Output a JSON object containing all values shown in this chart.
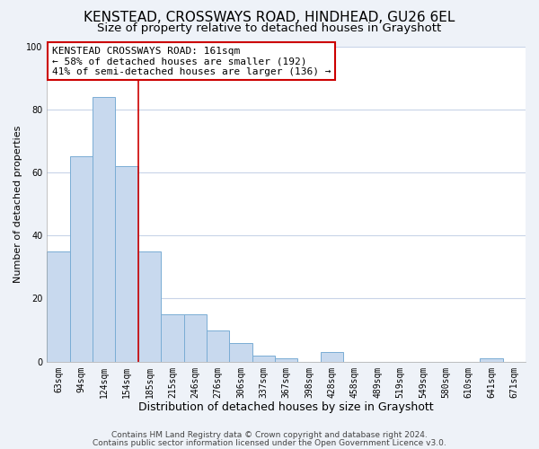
{
  "title": "KENSTEAD, CROSSWAYS ROAD, HINDHEAD, GU26 6EL",
  "subtitle": "Size of property relative to detached houses in Grayshott",
  "xlabel": "Distribution of detached houses by size in Grayshott",
  "ylabel": "Number of detached properties",
  "bar_color": "#c8d9ee",
  "bar_edge_color": "#7aadd4",
  "categories": [
    "63sqm",
    "94sqm",
    "124sqm",
    "154sqm",
    "185sqm",
    "215sqm",
    "246sqm",
    "276sqm",
    "306sqm",
    "337sqm",
    "367sqm",
    "398sqm",
    "428sqm",
    "458sqm",
    "489sqm",
    "519sqm",
    "549sqm",
    "580sqm",
    "610sqm",
    "641sqm",
    "671sqm"
  ],
  "values": [
    35,
    65,
    84,
    62,
    35,
    15,
    15,
    10,
    6,
    2,
    1,
    0,
    3,
    0,
    0,
    0,
    0,
    0,
    0,
    1,
    0
  ],
  "vline_color": "#cc0000",
  "ylim": [
    0,
    100
  ],
  "yticks": [
    0,
    20,
    40,
    60,
    80,
    100
  ],
  "annotation_title": "KENSTEAD CROSSWAYS ROAD: 161sqm",
  "annotation_line1": "← 58% of detached houses are smaller (192)",
  "annotation_line2": "41% of semi-detached houses are larger (136) →",
  "annotation_box_color": "#ffffff",
  "annotation_box_edge": "#cc0000",
  "footer1": "Contains HM Land Registry data © Crown copyright and database right 2024.",
  "footer2": "Contains public sector information licensed under the Open Government Licence v3.0.",
  "background_color": "#eef2f8",
  "plot_background_color": "#ffffff",
  "title_fontsize": 11,
  "subtitle_fontsize": 9.5,
  "xlabel_fontsize": 9,
  "ylabel_fontsize": 8,
  "tick_fontsize": 7,
  "annotation_fontsize": 8,
  "footer_fontsize": 6.5,
  "grid_color": "#c8d4e8"
}
